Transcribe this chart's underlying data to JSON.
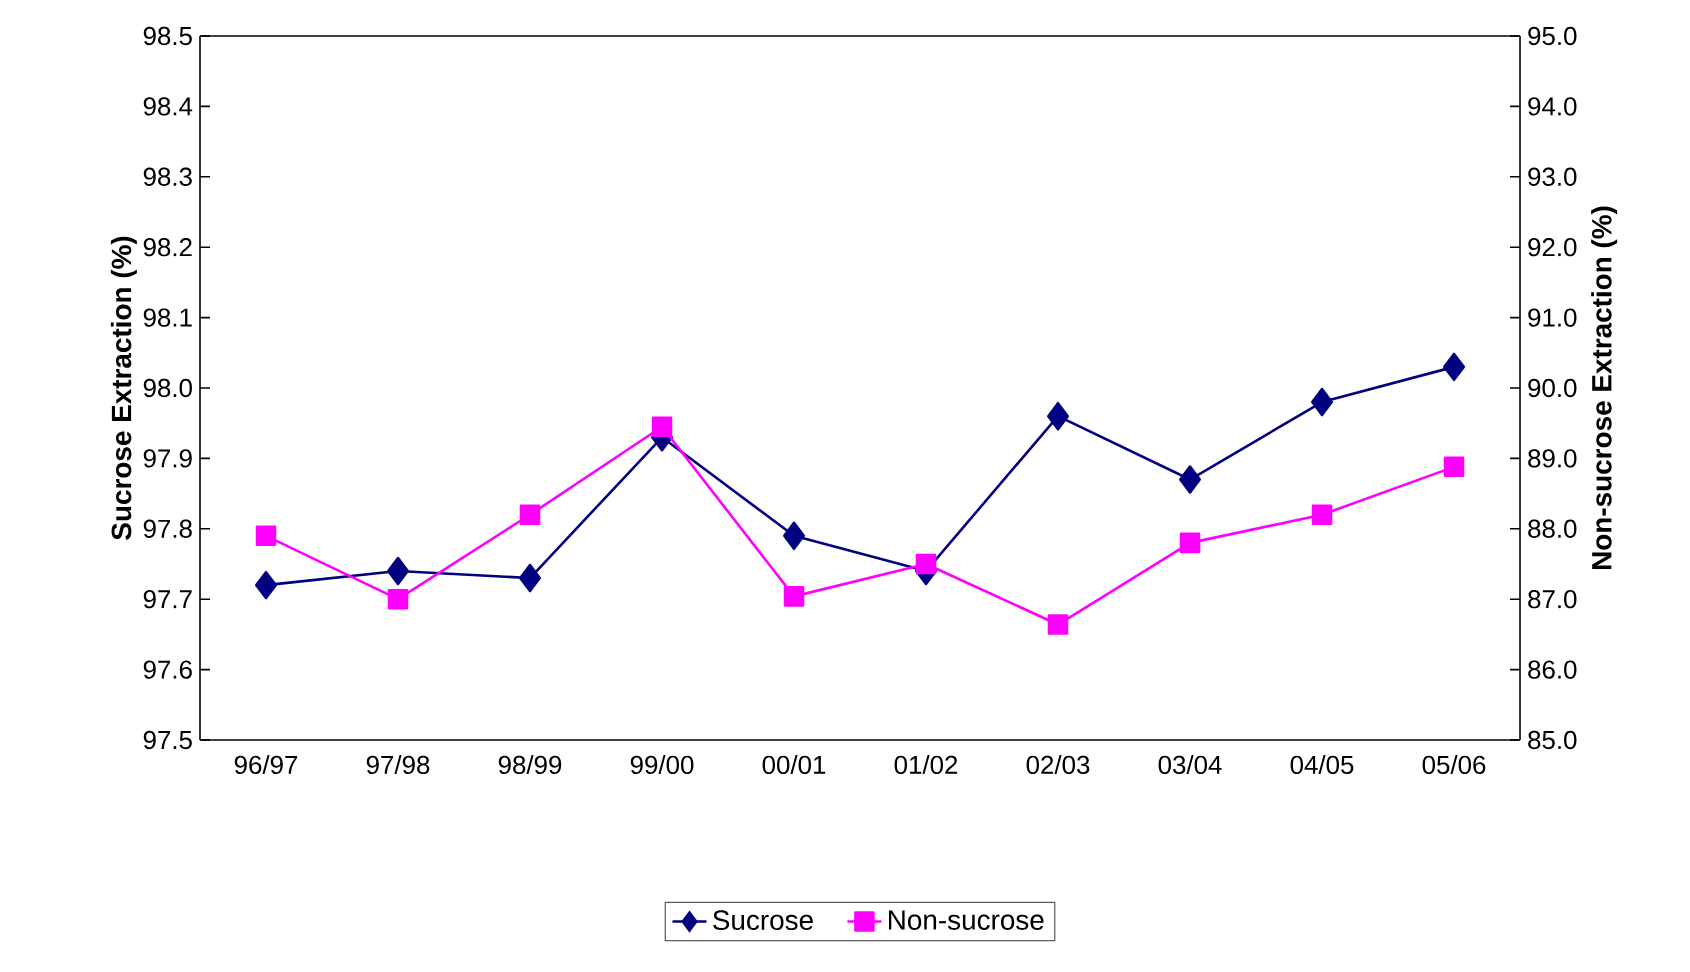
{
  "chart_data": {
    "type": "line",
    "ylabel": "Sucrose Extraction (%)",
    "y2label": "Non-sucrose Extraction (%)",
    "categories": [
      "96/97",
      "97/98",
      "98/99",
      "99/00",
      "00/01",
      "01/02",
      "02/03",
      "03/04",
      "04/05",
      "05/06"
    ],
    "series": [
      {
        "name": "Sucrose",
        "color": "#000080",
        "marker": "diamond",
        "values": [
          97.72,
          97.74,
          97.73,
          97.93,
          97.79,
          97.74,
          97.96,
          97.87,
          97.98,
          98.03
        ]
      },
      {
        "name": "Non-sucrose",
        "color": "#ff00ff",
        "marker": "square",
        "axis": "y2",
        "values": [
          87.9,
          87.0,
          88.2,
          89.45,
          87.04,
          87.5,
          86.64,
          87.8,
          88.2,
          88.88
        ]
      }
    ],
    "ylim": [
      97.5,
      98.5
    ],
    "yticks": [
      {
        "value": 97.5,
        "label": "97.5"
      },
      {
        "value": 97.6,
        "label": "97.6"
      },
      {
        "value": 97.7,
        "label": "97.7"
      },
      {
        "value": 97.8,
        "label": "97.8"
      },
      {
        "value": 97.9,
        "label": "97.9"
      },
      {
        "value": 98.0,
        "label": "98.0"
      },
      {
        "value": 98.1,
        "label": "98.1"
      },
      {
        "value": 98.2,
        "label": "98.2"
      },
      {
        "value": 98.3,
        "label": "98.3"
      },
      {
        "value": 98.4,
        "label": "98.4"
      },
      {
        "value": 98.5,
        "label": "98.5"
      }
    ],
    "y2lim": [
      85,
      95
    ],
    "y2ticks": [
      {
        "value": 85,
        "label": "85.0"
      },
      {
        "value": 86,
        "label": "86.0"
      },
      {
        "value": 87,
        "label": "87.0"
      },
      {
        "value": 88,
        "label": "88.0"
      },
      {
        "value": 89,
        "label": "89.0"
      },
      {
        "value": 90,
        "label": "90.0"
      },
      {
        "value": 91,
        "label": "91.0"
      },
      {
        "value": 92,
        "label": "92.0"
      },
      {
        "value": 93,
        "label": "93.0"
      },
      {
        "value": 94,
        "label": "94.0"
      },
      {
        "value": 95,
        "label": "95.0"
      }
    ],
    "grid": false,
    "legend": "bottom",
    "line_style": "solid"
  }
}
